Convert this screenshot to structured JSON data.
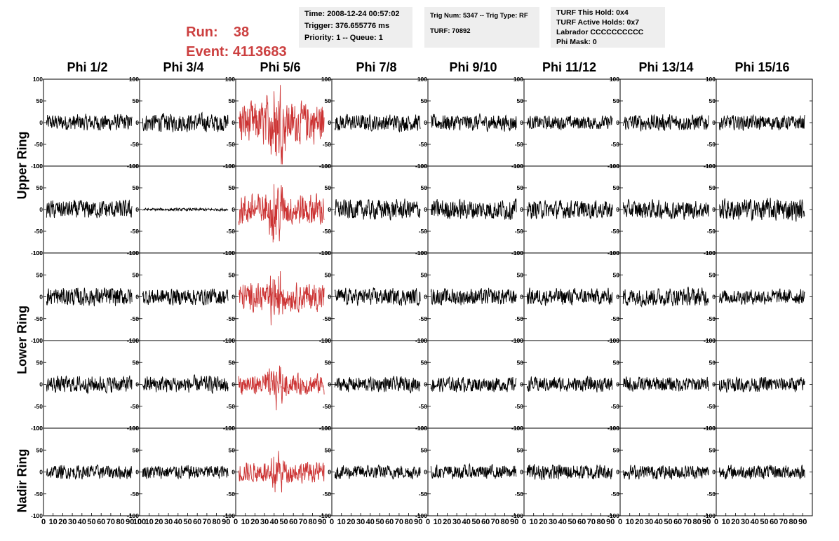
{
  "header": {
    "run_label": "Run:",
    "run_value": "38",
    "event_label": "Event:",
    "event_value": "4113683"
  },
  "info_time": {
    "time": "Time: 2008-12-24 00:57:02",
    "trigger": "Trigger: 376.655776 ms",
    "priority": "Priority: 1 -- Queue: 1"
  },
  "info_trig": {
    "trig": "Trig Num: 5347 -- Trig Type: RF",
    "turf": "TURF: 70892"
  },
  "info_turf": {
    "hold": "TURF This Hold: 0x4",
    "active": "TURF Active Holds: 0x7",
    "labrador": "Labrador CCCCCCCCCC",
    "phimask": "Phi Mask: 0"
  },
  "columns": [
    "Phi 1/2",
    "Phi 3/4",
    "Phi 5/6",
    "Phi 7/8",
    "Phi 9/10",
    "Phi 11/12",
    "Phi 13/14",
    "Phi 15/16"
  ],
  "rings": [
    "Upper Ring",
    "Lower Ring",
    "Nadir Ring"
  ],
  "chart_data": {
    "type": "line",
    "rows": 5,
    "cols": 8,
    "ylim": [
      -100,
      100
    ],
    "xlim": [
      0,
      100
    ],
    "y_ticks": [
      "100",
      "50",
      "0",
      "-50",
      "-100"
    ],
    "x_ticks": [
      "0",
      "10",
      "20",
      "30",
      "40",
      "50",
      "60",
      "70",
      "80",
      "90",
      "100"
    ],
    "highlight_col": 2,
    "colors": {
      "trace": "#000000",
      "highlight": "#cc3333",
      "header_red": "#cc4040"
    },
    "amplitudes": [
      [
        18,
        20,
        45,
        18,
        18,
        15,
        18,
        16
      ],
      [
        20,
        3,
        35,
        22,
        22,
        20,
        20,
        24
      ],
      [
        20,
        18,
        30,
        18,
        18,
        18,
        20,
        16
      ],
      [
        18,
        18,
        22,
        16,
        16,
        16,
        16,
        16
      ],
      [
        15,
        15,
        22,
        15,
        15,
        17,
        15,
        15
      ]
    ],
    "pulse_peaks": [
      85,
      55,
      50,
      35,
      35
    ]
  }
}
